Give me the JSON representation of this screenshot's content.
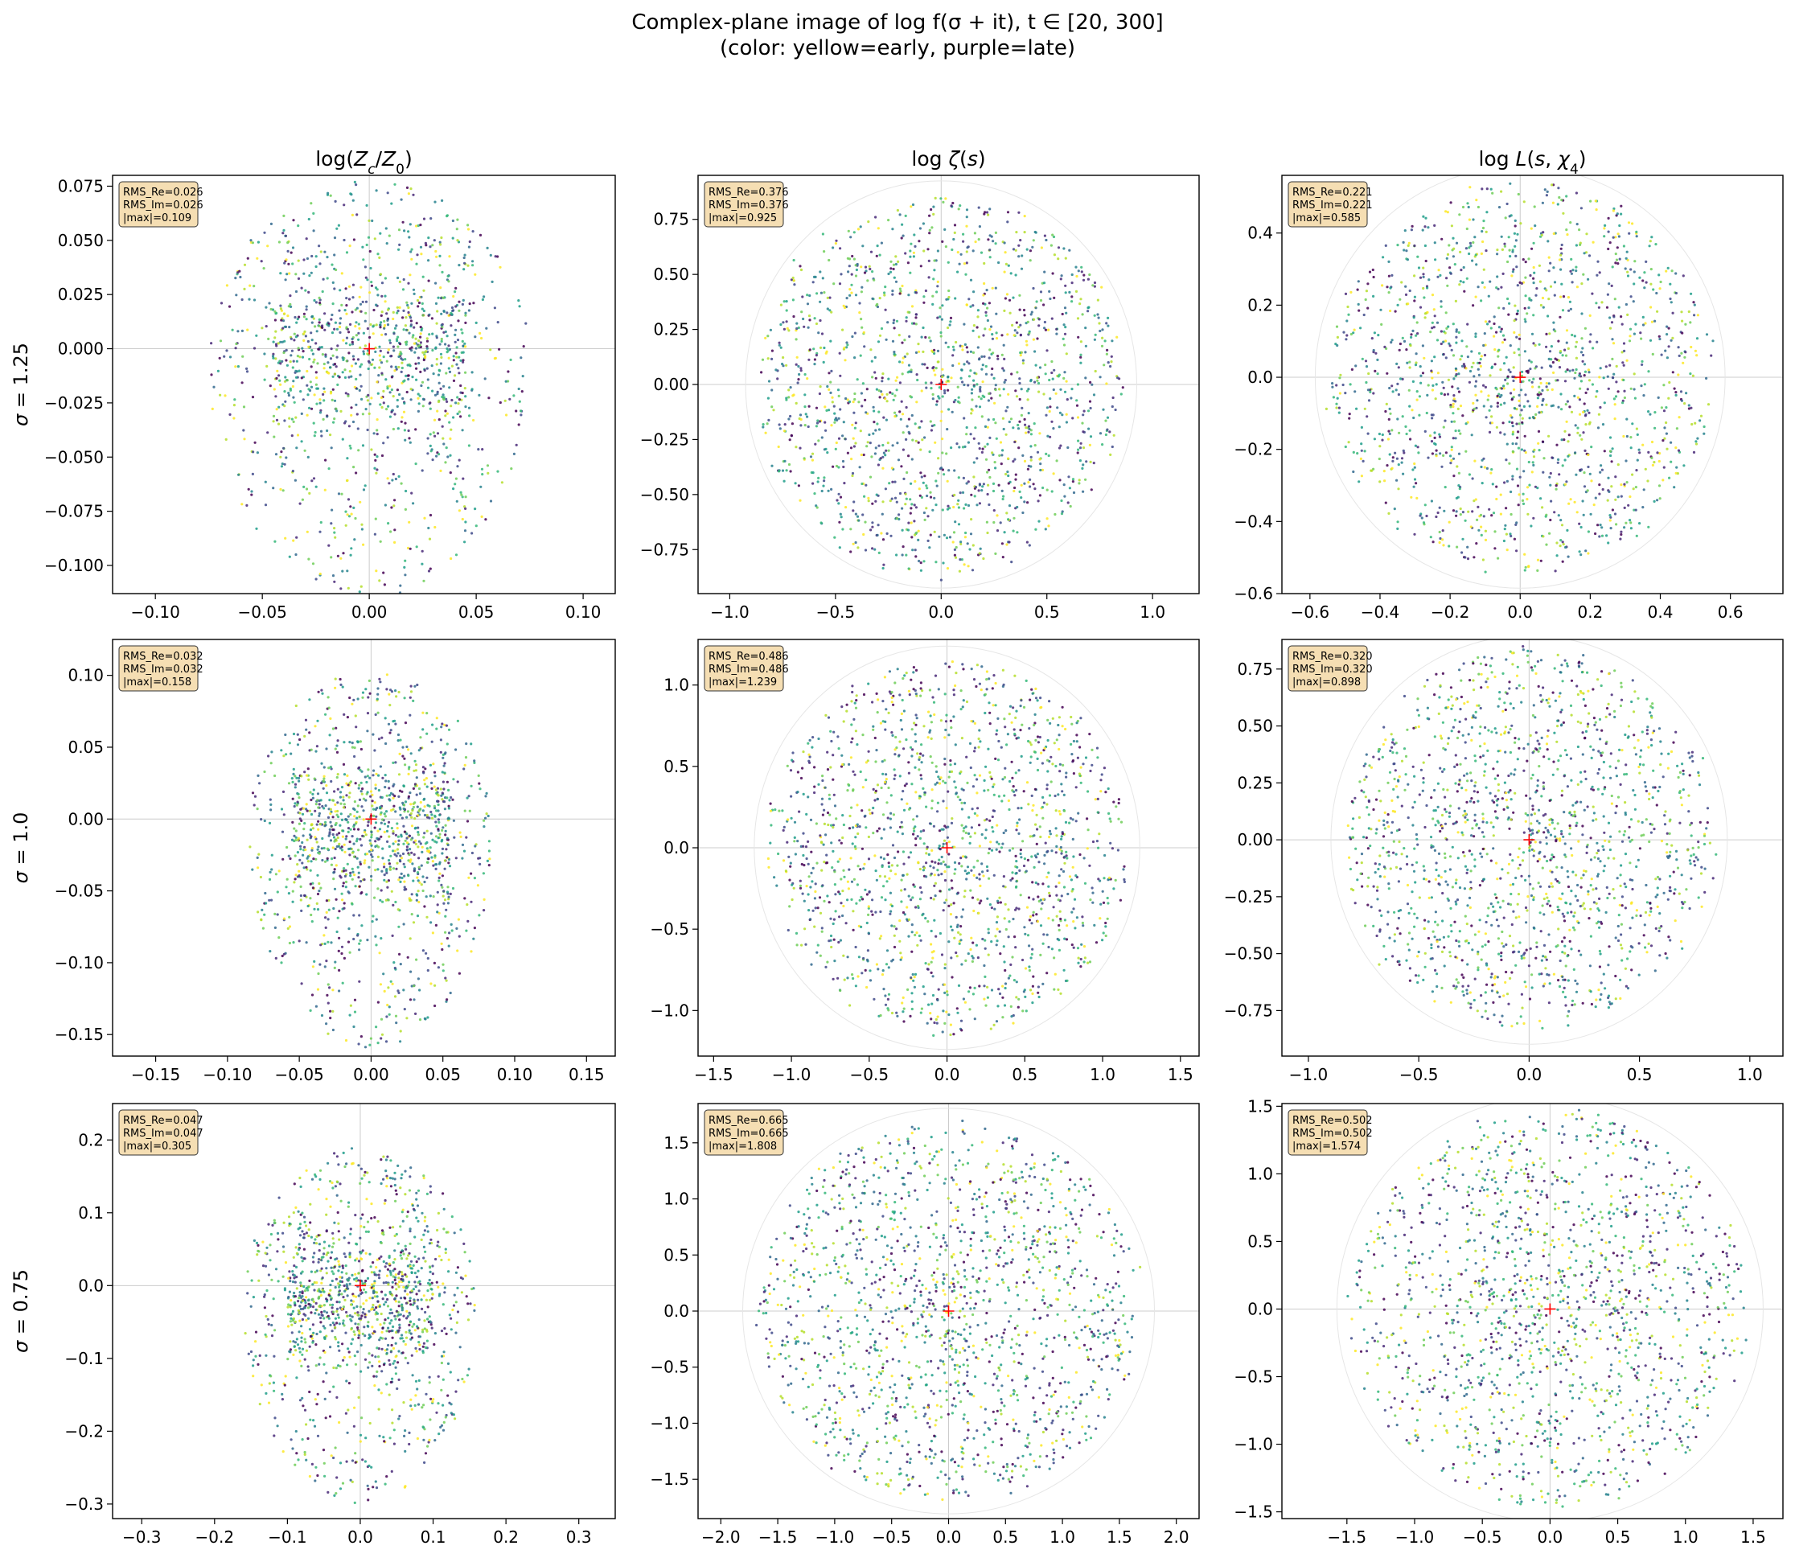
{
  "suptitle": {
    "line1": "Complex-plane image of log f(σ + it), t ∈ [20, 300]",
    "line2": "(color: yellow=early, purple=late)"
  },
  "columns": [
    "log(Z_c/Z_0)",
    "log ζ(s)",
    "log L(s, χ_4)"
  ],
  "rows": [
    "σ = 1.25",
    "σ = 1.0",
    "σ = 0.75"
  ],
  "colors": {
    "viridis": [
      "#fde725",
      "#b5de2b",
      "#6ece58",
      "#35b779",
      "#1f9e89",
      "#26828e",
      "#31688e",
      "#3e4989",
      "#482878",
      "#440154"
    ],
    "annotation_bg": "#f5deb3",
    "center_marker": "#ff0000",
    "grid": "#cccccc"
  },
  "chart_data": [
    {
      "type": "scatter",
      "row": 0,
      "col": 0,
      "title": "log(Z_c/Z_0)",
      "ylabel": "σ = 1.25",
      "xlim": [
        -0.12,
        0.115
      ],
      "ylim": [
        -0.113,
        0.08
      ],
      "xticks": [
        -0.1,
        -0.05,
        0.0,
        0.05,
        0.1
      ],
      "xtick_labels": [
        "−0.10",
        "−0.05",
        "0.00",
        "0.05",
        "0.10"
      ],
      "yticks": [
        0.075,
        0.05,
        0.025,
        0.0,
        -0.025,
        -0.05,
        -0.075,
        -0.1
      ],
      "ytick_labels": [
        "0.075",
        "0.050",
        "0.025",
        "0.000",
        "−0.025",
        "−0.050",
        "−0.075",
        "−0.100"
      ],
      "annotation": [
        "RMS_Re=0.026",
        "RMS_Im=0.026",
        "|max|=0.109"
      ],
      "shape": "lens",
      "rms": 0.026,
      "max": 0.109,
      "core": 0.045,
      "cy": -0.005,
      "spread_x": 0.075,
      "spread_y": 0.11
    },
    {
      "type": "scatter",
      "row": 0,
      "col": 1,
      "title": "log ζ(s)",
      "ylabel": "",
      "xlim": [
        -1.15,
        1.22
      ],
      "ylim": [
        -0.95,
        0.95
      ],
      "xticks": [
        -1.0,
        -0.5,
        0.0,
        0.5,
        1.0
      ],
      "xtick_labels": [
        "−1.0",
        "−0.5",
        "0.0",
        "0.5",
        "1.0"
      ],
      "yticks": [
        0.75,
        0.5,
        0.25,
        0.0,
        -0.25,
        -0.5,
        -0.75
      ],
      "ytick_labels": [
        "0.75",
        "0.50",
        "0.25",
        "0.00",
        "−0.25",
        "−0.50",
        "−0.75"
      ],
      "annotation": [
        "RMS_Re=0.376",
        "RMS_Im=0.376",
        "|max|=0.925"
      ],
      "shape": "disk",
      "rms": 0.376,
      "max": 0.925
    },
    {
      "type": "scatter",
      "row": 0,
      "col": 2,
      "title": "log L(s, χ_4)",
      "ylabel": "",
      "xlim": [
        -0.68,
        0.75
      ],
      "ylim": [
        -0.6,
        0.56
      ],
      "xticks": [
        -0.6,
        -0.4,
        -0.2,
        0.0,
        0.2,
        0.4,
        0.6
      ],
      "xtick_labels": [
        "−0.6",
        "−0.4",
        "−0.2",
        "0.0",
        "0.2",
        "0.4",
        "0.6"
      ],
      "yticks": [
        0.4,
        0.2,
        0.0,
        -0.2,
        -0.4,
        -0.6
      ],
      "ytick_labels": [
        "0.4",
        "0.2",
        "0.0",
        "−0.2",
        "−0.4",
        "−0.6"
      ],
      "annotation": [
        "RMS_Re=0.221",
        "RMS_Im=0.221",
        "|max|=0.585"
      ],
      "shape": "disk",
      "rms": 0.221,
      "max": 0.585
    },
    {
      "type": "scatter",
      "row": 1,
      "col": 0,
      "title": "",
      "ylabel": "σ = 1.0",
      "xlim": [
        -0.18,
        0.17
      ],
      "ylim": [
        -0.165,
        0.125
      ],
      "xticks": [
        -0.15,
        -0.1,
        -0.05,
        0.0,
        0.05,
        0.1,
        0.15
      ],
      "xtick_labels": [
        "−0.15",
        "−0.10",
        "−0.05",
        "0.00",
        "0.05",
        "0.10",
        "0.15"
      ],
      "yticks": [
        0.1,
        0.05,
        0.0,
        -0.05,
        -0.1,
        -0.15
      ],
      "ytick_labels": [
        "0.10",
        "0.05",
        "0.00",
        "−0.05",
        "−0.10",
        "−0.15"
      ],
      "annotation": [
        "RMS_Re=0.032",
        "RMS_Im=0.032",
        "|max|=0.158"
      ],
      "shape": "lens",
      "rms": 0.032,
      "max": 0.158,
      "core": 0.055,
      "cy": -0.01,
      "spread_x": 0.085,
      "spread_y": 0.15
    },
    {
      "type": "scatter",
      "row": 1,
      "col": 1,
      "title": "",
      "ylabel": "",
      "xlim": [
        -1.6,
        1.62
      ],
      "ylim": [
        -1.28,
        1.28
      ],
      "xticks": [
        -1.5,
        -1.0,
        -0.5,
        0.0,
        0.5,
        1.0,
        1.5
      ],
      "xtick_labels": [
        "−1.5",
        "−1.0",
        "−0.5",
        "0.0",
        "0.5",
        "1.0",
        "1.5"
      ],
      "yticks": [
        1.0,
        0.5,
        0.0,
        -0.5,
        -1.0
      ],
      "ytick_labels": [
        "1.0",
        "0.5",
        "0.0",
        "−0.5",
        "−1.0"
      ],
      "annotation": [
        "RMS_Re=0.486",
        "RMS_Im=0.486",
        "|max|=1.239"
      ],
      "shape": "disk",
      "rms": 0.486,
      "max": 1.239
    },
    {
      "type": "scatter",
      "row": 1,
      "col": 2,
      "title": "",
      "ylabel": "",
      "xlim": [
        -1.12,
        1.15
      ],
      "ylim": [
        -0.95,
        0.88
      ],
      "xticks": [
        -1.0,
        -0.5,
        0.0,
        0.5,
        1.0
      ],
      "xtick_labels": [
        "−1.0",
        "−0.5",
        "0.0",
        "0.5",
        "1.0"
      ],
      "yticks": [
        0.75,
        0.5,
        0.25,
        0.0,
        -0.25,
        -0.5,
        -0.75
      ],
      "ytick_labels": [
        "0.75",
        "0.50",
        "0.25",
        "0.00",
        "−0.25",
        "−0.50",
        "−0.75"
      ],
      "annotation": [
        "RMS_Re=0.320",
        "RMS_Im=0.320",
        "|max|=0.898"
      ],
      "shape": "disk",
      "rms": 0.32,
      "max": 0.898
    },
    {
      "type": "scatter",
      "row": 2,
      "col": 0,
      "title": "",
      "ylabel": "σ = 0.75",
      "xlim": [
        -0.34,
        0.35
      ],
      "ylim": [
        -0.32,
        0.25
      ],
      "xticks": [
        -0.3,
        -0.2,
        -0.1,
        0.0,
        0.1,
        0.2,
        0.3
      ],
      "xtick_labels": [
        "−0.3",
        "−0.2",
        "−0.1",
        "0.0",
        "0.1",
        "0.2",
        "0.3"
      ],
      "yticks": [
        0.2,
        0.1,
        0.0,
        -0.1,
        -0.2,
        -0.3
      ],
      "ytick_labels": [
        "0.2",
        "0.1",
        "0.0",
        "−0.1",
        "−0.2",
        "−0.3"
      ],
      "annotation": [
        "RMS_Re=0.047",
        "RMS_Im=0.047",
        "|max|=0.305"
      ],
      "shape": "lens",
      "rms": 0.047,
      "max": 0.305,
      "core": 0.1,
      "cy": -0.02,
      "spread_x": 0.16,
      "spread_y": 0.28
    },
    {
      "type": "scatter",
      "row": 2,
      "col": 1,
      "title": "",
      "ylabel": "",
      "xlim": [
        -2.2,
        2.2
      ],
      "ylim": [
        -1.85,
        1.85
      ],
      "xticks": [
        -2.0,
        -1.5,
        -1.0,
        -0.5,
        0.0,
        0.5,
        1.0,
        1.5,
        2.0
      ],
      "xtick_labels": [
        "−2.0",
        "−1.5",
        "−1.0",
        "−0.5",
        "0.0",
        "0.5",
        "1.0",
        "1.5",
        "2.0"
      ],
      "yticks": [
        1.5,
        1.0,
        0.5,
        0.0,
        -0.5,
        -1.0,
        -1.5
      ],
      "ytick_labels": [
        "1.5",
        "1.0",
        "0.5",
        "0.0",
        "−0.5",
        "−1.0",
        "−1.5"
      ],
      "annotation": [
        "RMS_Re=0.665",
        "RMS_Im=0.665",
        "|max|=1.808"
      ],
      "shape": "disk",
      "rms": 0.665,
      "max": 1.808
    },
    {
      "type": "scatter",
      "row": 2,
      "col": 2,
      "title": "",
      "ylabel": "",
      "xlim": [
        -1.98,
        1.72
      ],
      "ylim": [
        -1.55,
        1.52
      ],
      "xticks": [
        -1.5,
        -1.0,
        -0.5,
        0.0,
        0.5,
        1.0,
        1.5
      ],
      "xtick_labels": [
        "−1.5",
        "−1.0",
        "−0.5",
        "0.0",
        "0.5",
        "1.0",
        "1.5"
      ],
      "yticks": [
        1.5,
        1.0,
        0.5,
        0.0,
        -0.5,
        -1.0,
        -1.5
      ],
      "ytick_labels": [
        "1.5",
        "1.0",
        "0.5",
        "0.0",
        "−0.5",
        "−1.0",
        "−1.5"
      ],
      "annotation": [
        "RMS_Re=0.502",
        "RMS_Im=0.502",
        "|max|=1.574"
      ],
      "shape": "disk",
      "rms": 0.502,
      "max": 1.574
    }
  ]
}
